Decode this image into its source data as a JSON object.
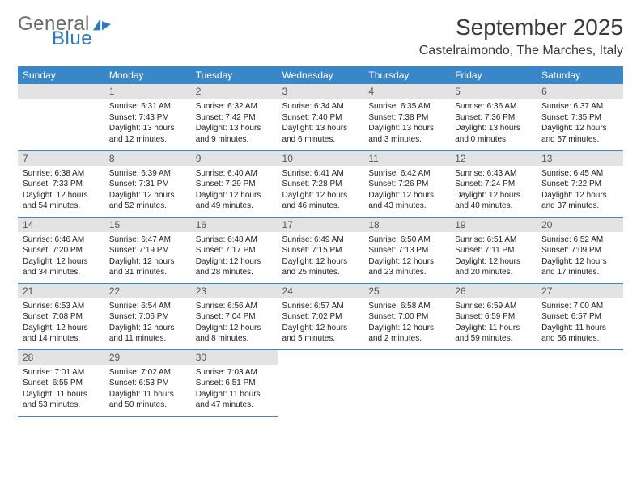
{
  "brand": {
    "word1": "General",
    "word2": "Blue"
  },
  "title": "September 2025",
  "location": "Castelraimondo, The Marches, Italy",
  "header_bg": "#3a87c7",
  "header_text_color": "#ffffff",
  "daynum_bg": "#e3e3e3",
  "border_color": "#3a87c7",
  "day_names": [
    "Sunday",
    "Monday",
    "Tuesday",
    "Wednesday",
    "Thursday",
    "Friday",
    "Saturday"
  ],
  "weeks": [
    [
      {
        "n": "",
        "sunrise": "",
        "sunset": "",
        "daylight": ""
      },
      {
        "n": "1",
        "sunrise": "Sunrise: 6:31 AM",
        "sunset": "Sunset: 7:43 PM",
        "daylight": "Daylight: 13 hours and 12 minutes."
      },
      {
        "n": "2",
        "sunrise": "Sunrise: 6:32 AM",
        "sunset": "Sunset: 7:42 PM",
        "daylight": "Daylight: 13 hours and 9 minutes."
      },
      {
        "n": "3",
        "sunrise": "Sunrise: 6:34 AM",
        "sunset": "Sunset: 7:40 PM",
        "daylight": "Daylight: 13 hours and 6 minutes."
      },
      {
        "n": "4",
        "sunrise": "Sunrise: 6:35 AM",
        "sunset": "Sunset: 7:38 PM",
        "daylight": "Daylight: 13 hours and 3 minutes."
      },
      {
        "n": "5",
        "sunrise": "Sunrise: 6:36 AM",
        "sunset": "Sunset: 7:36 PM",
        "daylight": "Daylight: 13 hours and 0 minutes."
      },
      {
        "n": "6",
        "sunrise": "Sunrise: 6:37 AM",
        "sunset": "Sunset: 7:35 PM",
        "daylight": "Daylight: 12 hours and 57 minutes."
      }
    ],
    [
      {
        "n": "7",
        "sunrise": "Sunrise: 6:38 AM",
        "sunset": "Sunset: 7:33 PM",
        "daylight": "Daylight: 12 hours and 54 minutes."
      },
      {
        "n": "8",
        "sunrise": "Sunrise: 6:39 AM",
        "sunset": "Sunset: 7:31 PM",
        "daylight": "Daylight: 12 hours and 52 minutes."
      },
      {
        "n": "9",
        "sunrise": "Sunrise: 6:40 AM",
        "sunset": "Sunset: 7:29 PM",
        "daylight": "Daylight: 12 hours and 49 minutes."
      },
      {
        "n": "10",
        "sunrise": "Sunrise: 6:41 AM",
        "sunset": "Sunset: 7:28 PM",
        "daylight": "Daylight: 12 hours and 46 minutes."
      },
      {
        "n": "11",
        "sunrise": "Sunrise: 6:42 AM",
        "sunset": "Sunset: 7:26 PM",
        "daylight": "Daylight: 12 hours and 43 minutes."
      },
      {
        "n": "12",
        "sunrise": "Sunrise: 6:43 AM",
        "sunset": "Sunset: 7:24 PM",
        "daylight": "Daylight: 12 hours and 40 minutes."
      },
      {
        "n": "13",
        "sunrise": "Sunrise: 6:45 AM",
        "sunset": "Sunset: 7:22 PM",
        "daylight": "Daylight: 12 hours and 37 minutes."
      }
    ],
    [
      {
        "n": "14",
        "sunrise": "Sunrise: 6:46 AM",
        "sunset": "Sunset: 7:20 PM",
        "daylight": "Daylight: 12 hours and 34 minutes."
      },
      {
        "n": "15",
        "sunrise": "Sunrise: 6:47 AM",
        "sunset": "Sunset: 7:19 PM",
        "daylight": "Daylight: 12 hours and 31 minutes."
      },
      {
        "n": "16",
        "sunrise": "Sunrise: 6:48 AM",
        "sunset": "Sunset: 7:17 PM",
        "daylight": "Daylight: 12 hours and 28 minutes."
      },
      {
        "n": "17",
        "sunrise": "Sunrise: 6:49 AM",
        "sunset": "Sunset: 7:15 PM",
        "daylight": "Daylight: 12 hours and 25 minutes."
      },
      {
        "n": "18",
        "sunrise": "Sunrise: 6:50 AM",
        "sunset": "Sunset: 7:13 PM",
        "daylight": "Daylight: 12 hours and 23 minutes."
      },
      {
        "n": "19",
        "sunrise": "Sunrise: 6:51 AM",
        "sunset": "Sunset: 7:11 PM",
        "daylight": "Daylight: 12 hours and 20 minutes."
      },
      {
        "n": "20",
        "sunrise": "Sunrise: 6:52 AM",
        "sunset": "Sunset: 7:09 PM",
        "daylight": "Daylight: 12 hours and 17 minutes."
      }
    ],
    [
      {
        "n": "21",
        "sunrise": "Sunrise: 6:53 AM",
        "sunset": "Sunset: 7:08 PM",
        "daylight": "Daylight: 12 hours and 14 minutes."
      },
      {
        "n": "22",
        "sunrise": "Sunrise: 6:54 AM",
        "sunset": "Sunset: 7:06 PM",
        "daylight": "Daylight: 12 hours and 11 minutes."
      },
      {
        "n": "23",
        "sunrise": "Sunrise: 6:56 AM",
        "sunset": "Sunset: 7:04 PM",
        "daylight": "Daylight: 12 hours and 8 minutes."
      },
      {
        "n": "24",
        "sunrise": "Sunrise: 6:57 AM",
        "sunset": "Sunset: 7:02 PM",
        "daylight": "Daylight: 12 hours and 5 minutes."
      },
      {
        "n": "25",
        "sunrise": "Sunrise: 6:58 AM",
        "sunset": "Sunset: 7:00 PM",
        "daylight": "Daylight: 12 hours and 2 minutes."
      },
      {
        "n": "26",
        "sunrise": "Sunrise: 6:59 AM",
        "sunset": "Sunset: 6:59 PM",
        "daylight": "Daylight: 11 hours and 59 minutes."
      },
      {
        "n": "27",
        "sunrise": "Sunrise: 7:00 AM",
        "sunset": "Sunset: 6:57 PM",
        "daylight": "Daylight: 11 hours and 56 minutes."
      }
    ],
    [
      {
        "n": "28",
        "sunrise": "Sunrise: 7:01 AM",
        "sunset": "Sunset: 6:55 PM",
        "daylight": "Daylight: 11 hours and 53 minutes."
      },
      {
        "n": "29",
        "sunrise": "Sunrise: 7:02 AM",
        "sunset": "Sunset: 6:53 PM",
        "daylight": "Daylight: 11 hours and 50 minutes."
      },
      {
        "n": "30",
        "sunrise": "Sunrise: 7:03 AM",
        "sunset": "Sunset: 6:51 PM",
        "daylight": "Daylight: 11 hours and 47 minutes."
      },
      {
        "n": "",
        "sunrise": "",
        "sunset": "",
        "daylight": ""
      },
      {
        "n": "",
        "sunrise": "",
        "sunset": "",
        "daylight": ""
      },
      {
        "n": "",
        "sunrise": "",
        "sunset": "",
        "daylight": ""
      },
      {
        "n": "",
        "sunrise": "",
        "sunset": "",
        "daylight": ""
      }
    ]
  ]
}
